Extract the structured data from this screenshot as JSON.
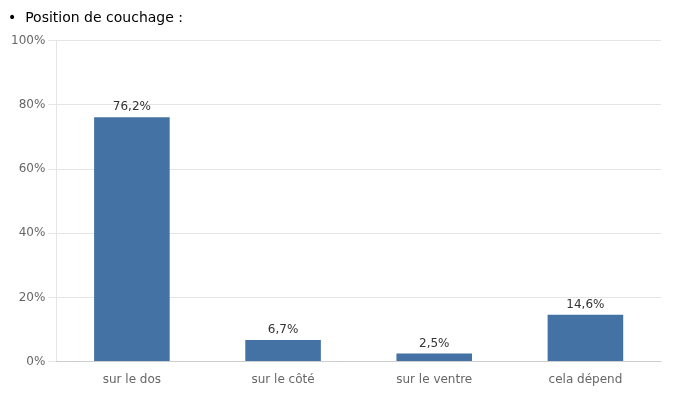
{
  "chart_data": {
    "type": "bar",
    "title": "•  Position de couchage :",
    "categories": [
      "sur le dos",
      "sur le côté",
      "sur le ventre",
      "cela dépend"
    ],
    "values": [
      76.2,
      6.7,
      2.5,
      14.6
    ],
    "value_labels": [
      "76,2%",
      "6,7%",
      "2,5%",
      "14,6%"
    ],
    "color": "#4472a4",
    "ylim": [
      0,
      100
    ],
    "yticks": [
      {
        "value": 0,
        "label": "0%"
      },
      {
        "value": 20,
        "label": "20%"
      },
      {
        "value": 40,
        "label": "40%"
      },
      {
        "value": 60,
        "label": "60%"
      },
      {
        "value": 80,
        "label": "80%"
      },
      {
        "value": 100,
        "label": "100%"
      }
    ],
    "grid": true,
    "data_labels": true
  }
}
